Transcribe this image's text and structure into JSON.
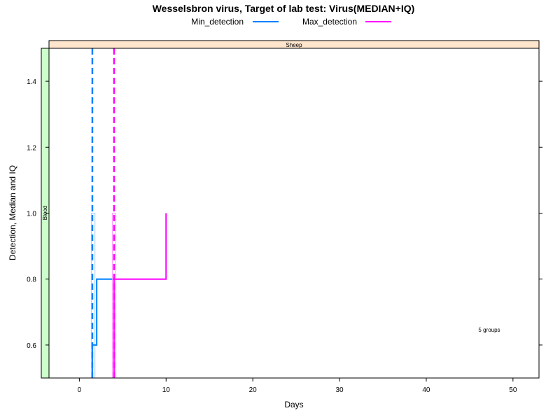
{
  "chart_data": {
    "type": "line",
    "title": "Wesselsbron virus, Target of lab test: Virus(MEDIAN+IQ)",
    "xlabel": "Days",
    "ylabel": "Detection, Median and IQ",
    "xlim": [
      -3.5,
      53
    ],
    "ylim": [
      0.5,
      1.5
    ],
    "x_ticks": [
      0,
      10,
      20,
      30,
      40,
      50
    ],
    "y_ticks": [
      0.6,
      0.8,
      1.0,
      1.2,
      1.4
    ],
    "x_tick_labels": [
      "0",
      "10",
      "20",
      "30",
      "40",
      "50"
    ],
    "y_tick_labels": [
      "0.6",
      "0.8",
      "1.0",
      "1.2",
      "1.4"
    ],
    "legend_position": "top",
    "legend": [
      {
        "name": "Min_detection",
        "color": "#0080ff"
      },
      {
        "name": "Max_detection",
        "color": "#ff00ff"
      }
    ],
    "strip_top": {
      "label": "Sheep",
      "color": "#ffe5cc"
    },
    "strip_left": {
      "label": "Blood",
      "color": "#ccffcc"
    },
    "annotation": "5 groups",
    "series": [
      {
        "name": "Min_detection",
        "color": "#0080ff",
        "step_x": [
          1.5,
          1.5,
          2,
          2,
          4
        ],
        "step_y": [
          0.5,
          0.6,
          0.6,
          0.8,
          0.8
        ],
        "iq_band": {
          "x": [
            1.4,
            1.8
          ],
          "y": [
            0.5,
            1.0
          ],
          "color": "#99ccff"
        },
        "median_vline_x": 1.5
      },
      {
        "name": "Max_detection",
        "color": "#ff00ff",
        "step_x": [
          4,
          4,
          10,
          10
        ],
        "step_y": [
          0.5,
          0.8,
          0.8,
          1.0
        ],
        "iq_band": {
          "x": [
            3.8,
            4.2
          ],
          "y": [
            0.5,
            1.0
          ],
          "color": "#ff99ff"
        },
        "median_vline_x": 4
      }
    ]
  }
}
